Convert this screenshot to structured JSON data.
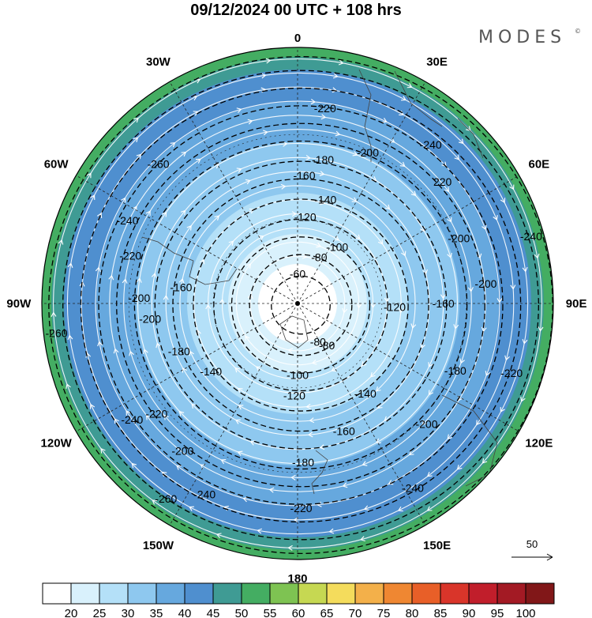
{
  "title": "09/12/2024  00 UTC  + 108 hrs",
  "brand": {
    "name": "MODES",
    "mark": "©"
  },
  "map": {
    "projection": "south-polar-stereographic",
    "field": "wind speed",
    "longitude_labels": [
      {
        "text": "0",
        "angle": 0
      },
      {
        "text": "30E",
        "angle": 30
      },
      {
        "text": "60E",
        "angle": 60
      },
      {
        "text": "90E",
        "angle": 90
      },
      {
        "text": "120E",
        "angle": 120
      },
      {
        "text": "150E",
        "angle": 150
      },
      {
        "text": "180",
        "angle": 180
      },
      {
        "text": "150W",
        "angle": 210
      },
      {
        "text": "120W",
        "angle": 240
      },
      {
        "text": "90W",
        "angle": 270
      },
      {
        "text": "60W",
        "angle": 300
      },
      {
        "text": "30W",
        "angle": 330
      }
    ],
    "contour_labels": [
      {
        "text": "-60",
        "r": 0.115,
        "angle": 0
      },
      {
        "text": "-80",
        "r": 0.2,
        "angle": 25
      },
      {
        "text": "-100",
        "r": 0.27,
        "angle": 35
      },
      {
        "text": "-120",
        "r": 0.34,
        "angle": 5
      },
      {
        "text": "-140",
        "r": 0.42,
        "angle": 15
      },
      {
        "text": "-160",
        "r": 0.5,
        "angle": 3
      },
      {
        "text": "-180",
        "r": 0.57,
        "angle": 10
      },
      {
        "text": "-200",
        "r": 0.65,
        "angle": 25
      },
      {
        "text": "-220",
        "r": 0.77,
        "angle": 8
      },
      {
        "text": "-240",
        "r": 0.81,
        "angle": 40
      },
      {
        "text": "220",
        "r": 0.74,
        "angle": 50
      },
      {
        "text": "-260",
        "r": 0.77,
        "angle": 315
      },
      {
        "text": "-240",
        "r": 0.74,
        "angle": 296
      },
      {
        "text": "-220",
        "r": 0.68,
        "angle": 286
      },
      {
        "text": "-200",
        "r": 0.62,
        "angle": 272
      },
      {
        "text": "-160",
        "r": 0.46,
        "angle": 278
      },
      {
        "text": "-80",
        "r": 0.2,
        "angle": 145
      },
      {
        "text": "-100",
        "r": 0.28,
        "angle": 180
      },
      {
        "text": "-120",
        "r": 0.36,
        "angle": 182
      },
      {
        "text": "-140",
        "r": 0.44,
        "angle": 143
      },
      {
        "text": "-160",
        "r": 0.53,
        "angle": 160
      },
      {
        "text": "-180",
        "r": 0.62,
        "angle": 178
      },
      {
        "text": "-200",
        "r": 0.69,
        "angle": 133
      },
      {
        "text": "-220",
        "r": 0.8,
        "angle": 179
      },
      {
        "text": "-240",
        "r": 0.85,
        "angle": 148
      },
      {
        "text": "-180",
        "r": 0.67,
        "angle": 113
      },
      {
        "text": "-200",
        "r": 0.68,
        "angle": 68
      },
      {
        "text": "-160",
        "r": 0.57,
        "angle": 90
      },
      {
        "text": "-120",
        "r": 0.38,
        "angle": 92
      },
      {
        "text": "-140",
        "r": 0.43,
        "angle": 232
      },
      {
        "text": "-180",
        "r": 0.5,
        "angle": 248
      },
      {
        "text": "-200",
        "r": 0.58,
        "angle": 264
      },
      {
        "text": "-220",
        "r": 0.7,
        "angle": 232
      },
      {
        "text": "-240",
        "r": 0.79,
        "angle": 235
      },
      {
        "text": "-260",
        "r": 0.92,
        "angle": 214
      },
      {
        "text": "-240",
        "r": 0.83,
        "angle": 206
      },
      {
        "text": "-200",
        "r": 0.73,
        "angle": 218
      },
      {
        "text": "-260",
        "r": 0.95,
        "angle": 263
      },
      {
        "text": "-240",
        "r": 0.95,
        "angle": 74
      },
      {
        "text": "-220",
        "r": 0.88,
        "angle": 108
      },
      {
        "text": "-200",
        "r": 0.74,
        "angle": 84
      },
      {
        "text": "-80",
        "r": 0.17,
        "angle": 152
      }
    ]
  },
  "colorbar": {
    "colors": [
      "#ffffff",
      "#d9f1fc",
      "#b4e0f8",
      "#8ec8ef",
      "#66a8de",
      "#4f8fcf",
      "#3f9b94",
      "#44ad62",
      "#7ec352",
      "#c6d852",
      "#f4dc5c",
      "#f3b04a",
      "#ef8732",
      "#e85f28",
      "#d9352a",
      "#c11e2b",
      "#a31a24",
      "#811718"
    ],
    "labels": [
      "20",
      "25",
      "30",
      "35",
      "40",
      "45",
      "50",
      "55",
      "60",
      "65",
      "70",
      "75",
      "80",
      "85",
      "90",
      "95",
      "100"
    ]
  },
  "reference_vector": {
    "label": "50"
  }
}
